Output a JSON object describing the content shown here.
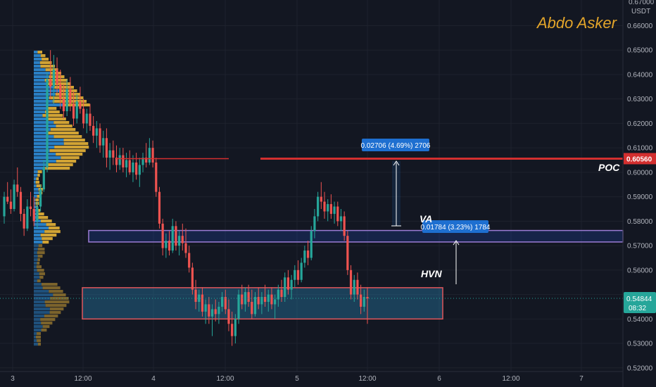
{
  "watermark": "Abdo Asker",
  "currency": "USDT",
  "top_clip_label": "0.67000",
  "colors": {
    "bg": "#131722",
    "up": "#26a69a",
    "down": "#ef5350",
    "poc": "#d32f2f",
    "vp_up": "#2a7fc4",
    "vp_down": "#d1a334",
    "va_box": "#9c7cd6",
    "hvn_box": "#e0555a",
    "measure": "#1e6fd0"
  },
  "chart_data": {
    "type": "candlestick",
    "y_ticks": [
      "0.66000",
      "0.65000",
      "0.64000",
      "0.63000",
      "0.62000",
      "0.61000",
      "0.60000",
      "0.59000",
      "0.58000",
      "0.57000",
      "0.56000",
      "0.55000",
      "0.54000",
      "0.53000",
      "0.52000"
    ],
    "x_ticks": [
      "3",
      "12:00",
      "4",
      "12:00",
      "5",
      "12:00",
      "6",
      "12:00",
      "7"
    ],
    "ylim": [
      0.5185,
      0.6705
    ],
    "poc_price": "0.60560",
    "current_price": "0.54844",
    "countdown": "08:32",
    "annotations": {
      "poc": "POC",
      "hvn": "HVN",
      "va": "VA"
    },
    "measure_upper": "0.02706 (4.69%) 2706",
    "measure_lower": "0.01784 (3.23%) 1784",
    "va_box": [
      0.5762,
      0.5715
    ],
    "hvn_box": [
      0.5528,
      0.54
    ],
    "candles": [
      [
        0.582,
        0.592,
        0.579,
        0.59
      ],
      [
        0.59,
        0.596,
        0.587,
        0.588
      ],
      [
        0.588,
        0.593,
        0.583,
        0.585
      ],
      [
        0.585,
        0.597,
        0.584,
        0.595
      ],
      [
        0.595,
        0.602,
        0.59,
        0.592
      ],
      [
        0.592,
        0.594,
        0.58,
        0.583
      ],
      [
        0.583,
        0.585,
        0.574,
        0.577
      ],
      [
        0.577,
        0.589,
        0.576,
        0.586
      ],
      [
        0.586,
        0.592,
        0.582,
        0.585
      ],
      [
        0.585,
        0.59,
        0.578,
        0.58
      ],
      [
        0.58,
        0.588,
        0.577,
        0.586
      ],
      [
        0.586,
        0.595,
        0.584,
        0.593
      ],
      [
        0.593,
        0.605,
        0.592,
        0.602
      ],
      [
        0.602,
        0.641,
        0.6,
        0.638
      ],
      [
        0.638,
        0.65,
        0.63,
        0.635
      ],
      [
        0.635,
        0.648,
        0.628,
        0.642
      ],
      [
        0.642,
        0.647,
        0.632,
        0.636
      ],
      [
        0.636,
        0.642,
        0.626,
        0.63
      ],
      [
        0.63,
        0.636,
        0.622,
        0.625
      ],
      [
        0.625,
        0.638,
        0.623,
        0.634
      ],
      [
        0.634,
        0.639,
        0.625,
        0.628
      ],
      [
        0.628,
        0.633,
        0.619,
        0.622
      ],
      [
        0.622,
        0.632,
        0.62,
        0.629
      ],
      [
        0.629,
        0.635,
        0.624,
        0.626
      ],
      [
        0.626,
        0.63,
        0.618,
        0.62
      ],
      [
        0.62,
        0.626,
        0.616,
        0.624
      ],
      [
        0.624,
        0.628,
        0.617,
        0.619
      ],
      [
        0.619,
        0.623,
        0.612,
        0.615
      ],
      [
        0.615,
        0.621,
        0.61,
        0.618
      ],
      [
        0.618,
        0.62,
        0.608,
        0.611
      ],
      [
        0.611,
        0.617,
        0.606,
        0.614
      ],
      [
        0.614,
        0.618,
        0.602,
        0.606
      ],
      [
        0.606,
        0.612,
        0.601,
        0.609
      ],
      [
        0.609,
        0.613,
        0.603,
        0.606
      ],
      [
        0.606,
        0.611,
        0.6,
        0.603
      ],
      [
        0.603,
        0.61,
        0.601,
        0.607
      ],
      [
        0.607,
        0.61,
        0.6,
        0.602
      ],
      [
        0.602,
        0.608,
        0.598,
        0.605
      ],
      [
        0.605,
        0.609,
        0.599,
        0.6
      ],
      [
        0.6,
        0.607,
        0.596,
        0.604
      ],
      [
        0.604,
        0.608,
        0.597,
        0.599
      ],
      [
        0.599,
        0.606,
        0.594,
        0.603
      ],
      [
        0.603,
        0.608,
        0.6,
        0.606
      ],
      [
        0.606,
        0.612,
        0.602,
        0.604
      ],
      [
        0.604,
        0.614,
        0.603,
        0.61
      ],
      [
        0.61,
        0.613,
        0.602,
        0.604
      ],
      [
        0.604,
        0.606,
        0.59,
        0.592
      ],
      [
        0.592,
        0.594,
        0.577,
        0.579
      ],
      [
        0.579,
        0.581,
        0.566,
        0.569
      ],
      [
        0.569,
        0.575,
        0.565,
        0.572
      ],
      [
        0.572,
        0.576,
        0.566,
        0.568
      ],
      [
        0.568,
        0.581,
        0.567,
        0.578
      ],
      [
        0.578,
        0.58,
        0.568,
        0.57
      ],
      [
        0.57,
        0.576,
        0.566,
        0.574
      ],
      [
        0.574,
        0.579,
        0.568,
        0.571
      ],
      [
        0.571,
        0.577,
        0.565,
        0.567
      ],
      [
        0.567,
        0.57,
        0.559,
        0.561
      ],
      [
        0.561,
        0.563,
        0.55,
        0.552
      ],
      [
        0.552,
        0.556,
        0.544,
        0.547
      ],
      [
        0.547,
        0.552,
        0.543,
        0.55
      ],
      [
        0.55,
        0.553,
        0.541,
        0.543
      ],
      [
        0.543,
        0.548,
        0.538,
        0.546
      ],
      [
        0.546,
        0.549,
        0.538,
        0.541
      ],
      [
        0.541,
        0.546,
        0.533,
        0.544
      ],
      [
        0.544,
        0.548,
        0.539,
        0.542
      ],
      [
        0.542,
        0.547,
        0.538,
        0.545
      ],
      [
        0.545,
        0.551,
        0.543,
        0.549
      ],
      [
        0.549,
        0.552,
        0.542,
        0.544
      ],
      [
        0.544,
        0.548,
        0.535,
        0.538
      ],
      [
        0.538,
        0.543,
        0.529,
        0.533
      ],
      [
        0.533,
        0.542,
        0.53,
        0.54
      ],
      [
        0.54,
        0.552,
        0.538,
        0.55
      ],
      [
        0.55,
        0.554,
        0.544,
        0.546
      ],
      [
        0.546,
        0.553,
        0.543,
        0.551
      ],
      [
        0.551,
        0.554,
        0.545,
        0.547
      ],
      [
        0.547,
        0.552,
        0.54,
        0.542
      ],
      [
        0.542,
        0.551,
        0.541,
        0.549
      ],
      [
        0.549,
        0.553,
        0.544,
        0.546
      ],
      [
        0.546,
        0.551,
        0.542,
        0.549
      ],
      [
        0.549,
        0.554,
        0.545,
        0.547
      ],
      [
        0.547,
        0.552,
        0.543,
        0.55
      ],
      [
        0.55,
        0.553,
        0.544,
        0.546
      ],
      [
        0.546,
        0.55,
        0.54,
        0.548
      ],
      [
        0.548,
        0.554,
        0.545,
        0.552
      ],
      [
        0.552,
        0.556,
        0.547,
        0.549
      ],
      [
        0.549,
        0.559,
        0.547,
        0.557
      ],
      [
        0.557,
        0.56,
        0.55,
        0.552
      ],
      [
        0.552,
        0.558,
        0.548,
        0.556
      ],
      [
        0.556,
        0.562,
        0.553,
        0.56
      ],
      [
        0.56,
        0.564,
        0.554,
        0.556
      ],
      [
        0.556,
        0.565,
        0.555,
        0.563
      ],
      [
        0.563,
        0.57,
        0.561,
        0.568
      ],
      [
        0.568,
        0.572,
        0.562,
        0.565
      ],
      [
        0.565,
        0.578,
        0.564,
        0.576
      ],
      [
        0.576,
        0.585,
        0.573,
        0.582
      ],
      [
        0.582,
        0.592,
        0.58,
        0.59
      ],
      [
        0.59,
        0.596,
        0.585,
        0.588
      ],
      [
        0.588,
        0.592,
        0.581,
        0.584
      ],
      [
        0.584,
        0.589,
        0.58,
        0.587
      ],
      [
        0.587,
        0.591,
        0.581,
        0.583
      ],
      [
        0.583,
        0.588,
        0.579,
        0.586
      ],
      [
        0.586,
        0.588,
        0.578,
        0.58
      ],
      [
        0.58,
        0.585,
        0.576,
        0.582
      ],
      [
        0.582,
        0.584,
        0.572,
        0.574
      ],
      [
        0.574,
        0.576,
        0.558,
        0.56
      ],
      [
        0.56,
        0.562,
        0.548,
        0.55
      ],
      [
        0.55,
        0.558,
        0.547,
        0.556
      ],
      [
        0.556,
        0.559,
        0.548,
        0.55
      ],
      [
        0.55,
        0.554,
        0.542,
        0.545
      ],
      [
        0.545,
        0.552,
        0.543,
        0.549
      ],
      [
        0.549,
        0.553,
        0.538,
        0.5484
      ]
    ]
  }
}
